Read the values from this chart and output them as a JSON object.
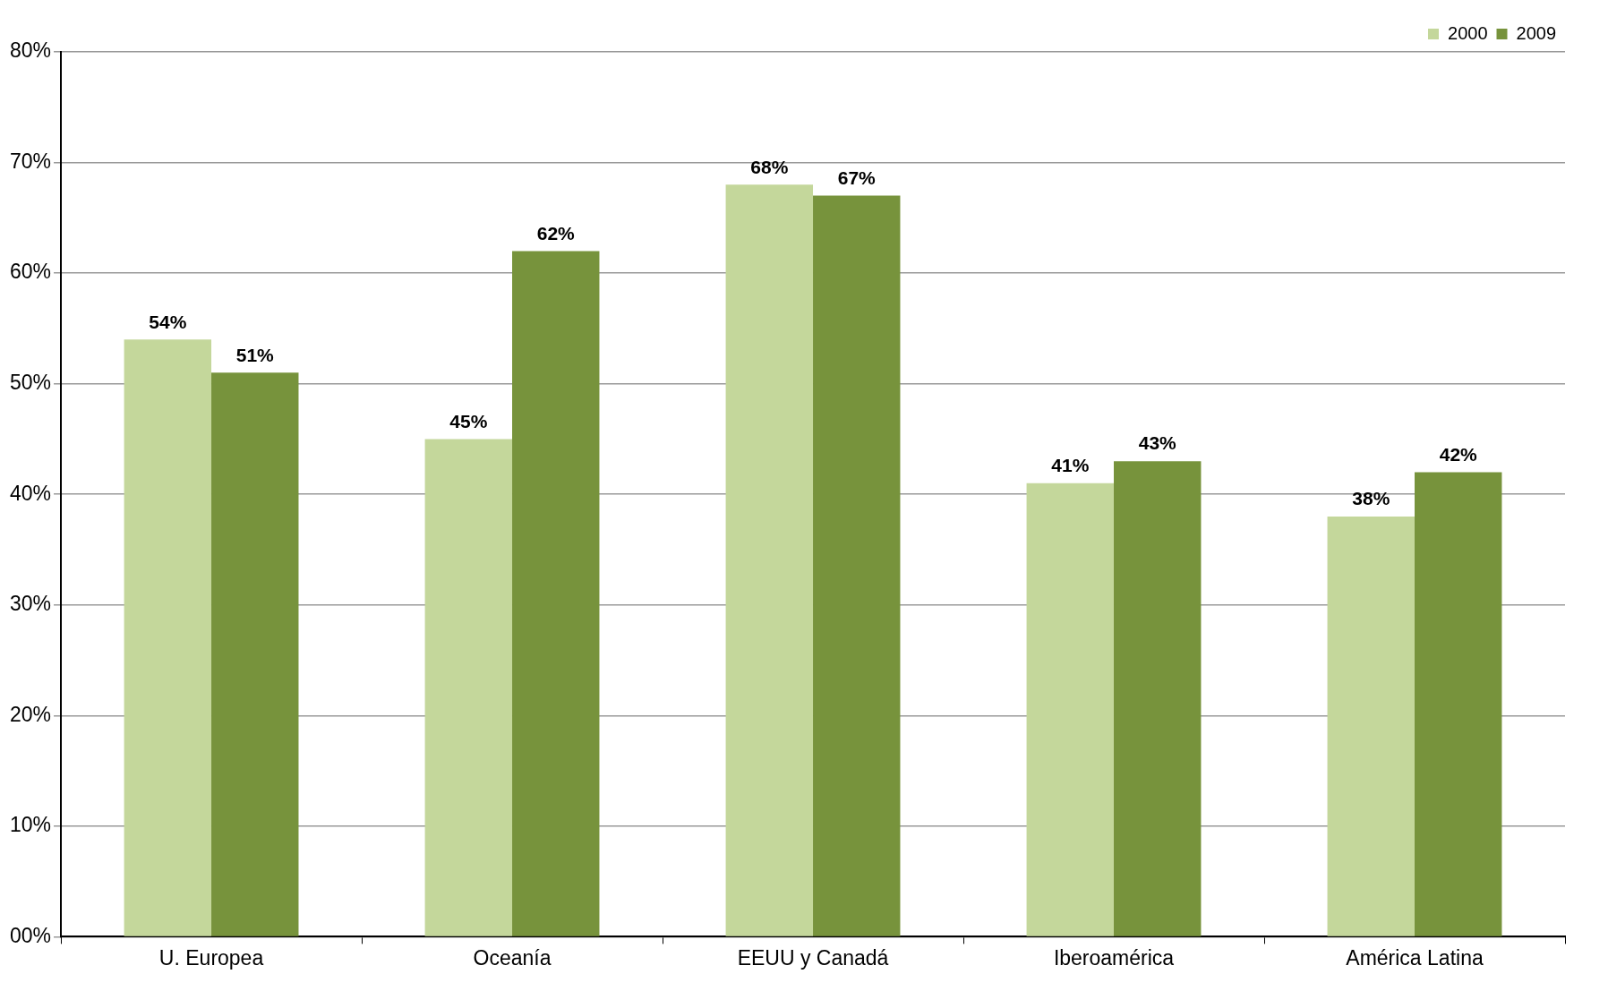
{
  "chart_data": {
    "type": "bar",
    "categories": [
      "U. Europea",
      "Oceanía",
      "EEUU y Canadá",
      "Iberoamérica",
      "América Latina"
    ],
    "series": [
      {
        "name": "2000",
        "color": "#c4d79b",
        "values": [
          54,
          45,
          68,
          41,
          38
        ],
        "value_labels": [
          "54%",
          "45%",
          "68%",
          "41%",
          "38%"
        ]
      },
      {
        "name": "2009",
        "color": "#77933c",
        "values": [
          51,
          62,
          67,
          43,
          42
        ],
        "value_labels": [
          "51%",
          "62%",
          "67%",
          "43%",
          "42%"
        ]
      }
    ],
    "ylim": [
      0,
      80
    ],
    "yticks": [
      {
        "value": 0,
        "label": "00%"
      },
      {
        "value": 10,
        "label": "10%"
      },
      {
        "value": 20,
        "label": "20%"
      },
      {
        "value": 30,
        "label": "30%"
      },
      {
        "value": 40,
        "label": "40%"
      },
      {
        "value": 50,
        "label": "50%"
      },
      {
        "value": 60,
        "label": "60%"
      },
      {
        "value": 70,
        "label": "70%"
      },
      {
        "value": 80,
        "label": "80%"
      }
    ],
    "grid": "y",
    "legend": "top right"
  }
}
